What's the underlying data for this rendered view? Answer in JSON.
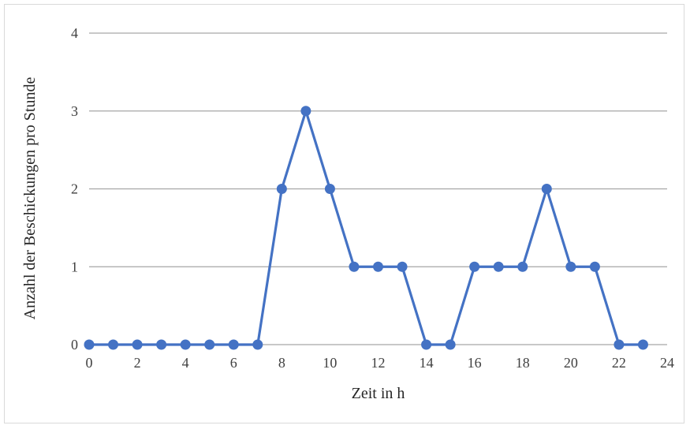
{
  "chart_data": {
    "type": "line",
    "title": "",
    "xlabel": "Zeit in h",
    "ylabel": "Anzahl der Beschickungen pro Stunde",
    "xlim": [
      0,
      24
    ],
    "ylim": [
      0,
      4
    ],
    "x_ticks": [
      "0",
      "2",
      "4",
      "6",
      "8",
      "10",
      "12",
      "14",
      "16",
      "18",
      "20",
      "22",
      "24"
    ],
    "y_ticks": [
      "0",
      "1",
      "2",
      "3",
      "4"
    ],
    "grid": "horizontal",
    "legend": "none",
    "series": [
      {
        "color": "#4472c4",
        "x": [
          0,
          1,
          2,
          3,
          4,
          5,
          6,
          7,
          8,
          9,
          10,
          11,
          12,
          13,
          14,
          15,
          16,
          17,
          18,
          19,
          20,
          21,
          22,
          23
        ],
        "y": [
          0,
          0,
          0,
          0,
          0,
          0,
          0,
          0,
          2,
          3,
          2,
          1,
          1,
          1,
          0,
          0,
          1,
          1,
          1,
          2,
          1,
          1,
          0,
          0
        ]
      }
    ]
  },
  "colors": {
    "series": "#4472c4",
    "grid": "#a6a6a6",
    "axis": "#a6a6a6",
    "text": "#404040"
  }
}
